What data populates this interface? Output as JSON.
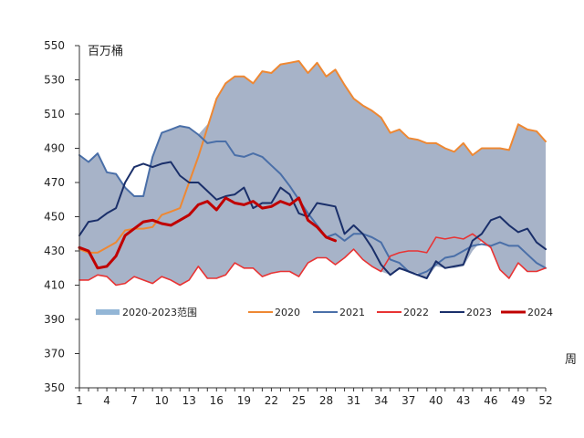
{
  "chart_data": {
    "type": "line",
    "ylabel": "百万桶",
    "xlabel": "周",
    "ylim": [
      350,
      550
    ],
    "y_ticks": [
      350,
      370,
      390,
      410,
      430,
      450,
      470,
      490,
      510,
      530,
      550
    ],
    "xlim": [
      1,
      52
    ],
    "x_ticks": [
      1,
      4,
      7,
      10,
      13,
      16,
      19,
      22,
      25,
      28,
      31,
      34,
      37,
      40,
      43,
      46,
      49,
      52
    ],
    "grid": false,
    "legend_position": "inside-bottom",
    "band": {
      "name": "2020-2023范围",
      "color": "#a7b3c8",
      "upper": [
        486,
        482,
        487,
        476,
        475,
        467,
        462,
        462,
        485,
        499,
        501,
        503,
        502,
        498,
        504,
        519,
        528,
        532,
        532,
        528,
        535,
        534,
        539,
        540,
        541,
        534,
        540,
        532,
        536,
        527,
        519,
        515,
        512,
        508,
        499,
        501,
        496,
        495,
        493,
        493,
        490,
        488,
        493,
        486,
        490,
        490,
        490,
        489,
        504,
        501,
        500,
        494
      ],
      "lower": [
        413,
        413,
        416,
        415,
        410,
        411,
        415,
        413,
        411,
        415,
        413,
        410,
        413,
        421,
        414,
        414,
        416,
        423,
        420,
        420,
        415,
        417,
        418,
        418,
        415,
        423,
        426,
        426,
        422,
        426,
        431,
        425,
        421,
        418,
        416,
        419,
        418,
        417,
        414,
        421,
        420,
        420,
        421,
        430,
        436,
        432,
        419,
        414,
        423,
        418,
        418,
        420
      ]
    },
    "series": [
      {
        "name": "2020",
        "color": "#ee8833",
        "width": 2,
        "values": [
          431,
          429,
          429,
          432,
          435,
          442,
          443,
          443,
          444,
          451,
          453,
          455,
          470,
          485,
          502,
          519,
          528,
          532,
          532,
          528,
          535,
          534,
          539,
          540,
          541,
          534,
          540,
          532,
          536,
          527,
          519,
          515,
          512,
          508,
          499,
          501,
          496,
          495,
          493,
          493,
          490,
          488,
          493,
          486,
          490,
          490,
          490,
          489,
          504,
          501,
          500,
          494
        ]
      },
      {
        "name": "2021",
        "color": "#4a6fa8",
        "width": 2,
        "values": [
          486,
          482,
          487,
          476,
          475,
          467,
          462,
          462,
          485,
          499,
          501,
          503,
          502,
          498,
          493,
          494,
          494,
          486,
          485,
          487,
          485,
          480,
          475,
          468,
          460,
          452,
          445,
          438,
          440,
          436,
          440,
          440,
          438,
          435,
          425,
          423,
          418,
          416,
          418,
          422,
          426,
          427,
          430,
          433,
          434,
          433,
          435,
          433,
          433,
          428,
          423,
          420
        ]
      },
      {
        "name": "2022",
        "color": "#e83333",
        "width": 1.6,
        "values": [
          413,
          413,
          416,
          415,
          410,
          411,
          415,
          413,
          411,
          415,
          413,
          410,
          413,
          421,
          414,
          414,
          416,
          423,
          420,
          420,
          415,
          417,
          418,
          418,
          415,
          423,
          426,
          426,
          422,
          426,
          431,
          425,
          421,
          418,
          427,
          429,
          430,
          430,
          429,
          438,
          437,
          438,
          437,
          440,
          436,
          432,
          419,
          414,
          423,
          418,
          418,
          420
        ]
      },
      {
        "name": "2023",
        "color": "#1a2f6a",
        "width": 2,
        "values": [
          439,
          447,
          448,
          452,
          455,
          470,
          479,
          481,
          479,
          481,
          482,
          474,
          470,
          470,
          465,
          460,
          462,
          463,
          467,
          455,
          458,
          458,
          467,
          463,
          452,
          450,
          458,
          457,
          456,
          440,
          445,
          440,
          432,
          422,
          416,
          420,
          418,
          416,
          414,
          424,
          420,
          421,
          422,
          436,
          440,
          448,
          450,
          445,
          441,
          443,
          435,
          431
        ]
      },
      {
        "name": "2024",
        "color": "#c00000",
        "width": 3,
        "values": [
          432,
          430,
          420,
          421,
          427,
          439,
          443,
          447,
          448,
          446,
          445,
          448,
          451,
          457,
          459,
          454,
          461,
          458,
          457,
          459,
          455,
          456,
          459,
          457,
          461,
          448,
          444,
          438,
          436
        ]
      }
    ]
  }
}
